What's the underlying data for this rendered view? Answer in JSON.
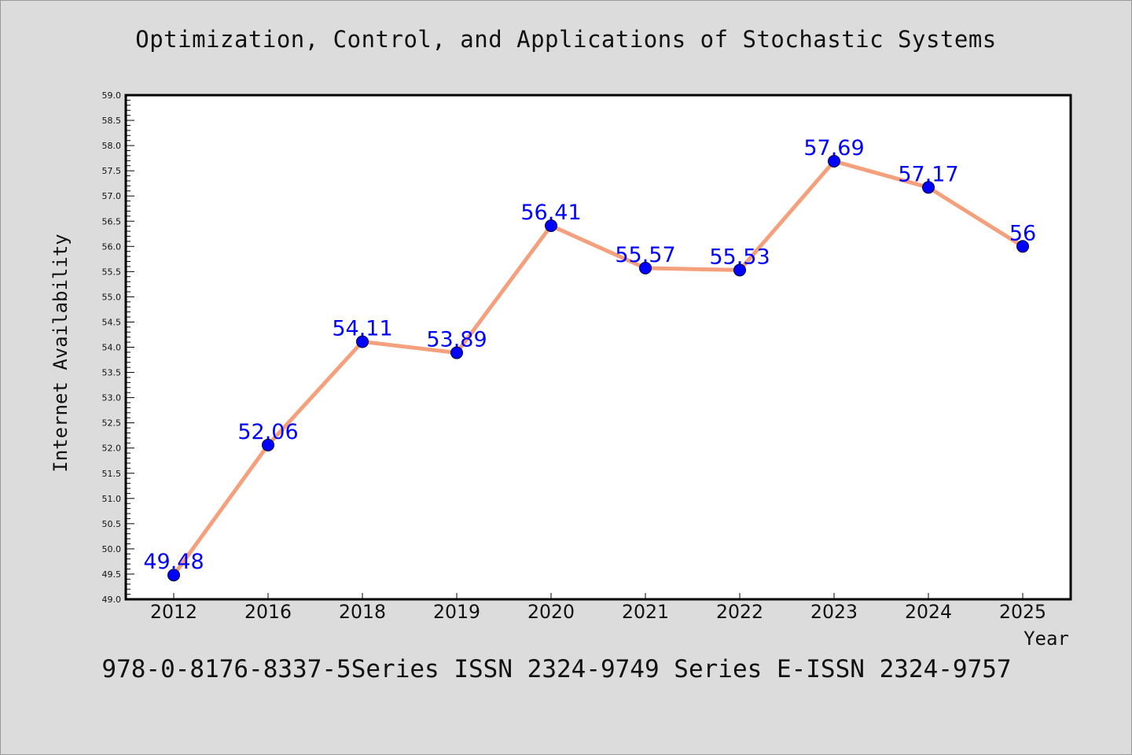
{
  "title": "Optimization, Control, and Applications of Stochastic Systems",
  "footer": "978-0-8176-8337-5Series ISSN 2324-9749 Series E-ISSN 2324-9757",
  "colors": {
    "background": "#dcdcdc",
    "plot_background": "#ffffff",
    "line": "#f4a07c",
    "marker": "#0000ff",
    "label": "#0000ff",
    "axis": "#000000"
  },
  "chart_data": {
    "type": "line",
    "title": "Optimization, Control, and Applications of Stochastic Systems",
    "xlabel": "Year",
    "ylabel": "Internet Availability",
    "categories": [
      "2012",
      "2016",
      "2018",
      "2019",
      "2020",
      "2021",
      "2022",
      "2023",
      "2024",
      "2025"
    ],
    "series": [
      {
        "values": [
          49.48,
          52.06,
          54.11,
          53.89,
          56.41,
          55.57,
          55.53,
          57.69,
          57.17,
          56
        ],
        "labels": [
          "49.48",
          "52.06",
          "54.11",
          "53.89",
          "56.41",
          "55.57",
          "55.53",
          "57.69",
          "57.17",
          "56"
        ]
      }
    ],
    "ylim": [
      49.0,
      59.0
    ],
    "yticks": [
      "49.0",
      "49.5",
      "50.0",
      "50.5",
      "51.0",
      "51.5",
      "52.0",
      "52.5",
      "53.0",
      "53.5",
      "54.0",
      "54.5",
      "55.0",
      "55.5",
      "56.0",
      "56.5",
      "57.0",
      "57.5",
      "58.0",
      "58.5",
      "59.0"
    ],
    "grid": false,
    "legend": "none"
  }
}
